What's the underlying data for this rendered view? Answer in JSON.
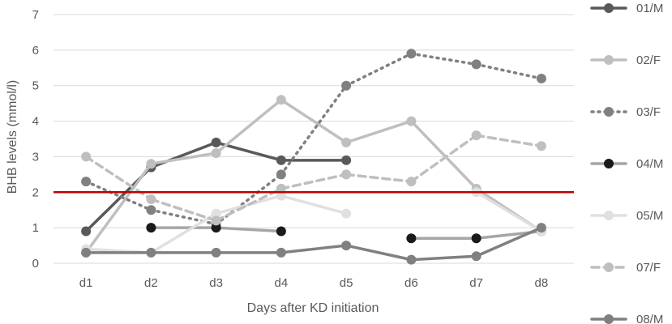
{
  "chart_data": {
    "type": "line",
    "xlabel": "Days after KD initiation",
    "ylabel": "BHB levels (mmol/l)",
    "categories": [
      "d1",
      "d2",
      "d3",
      "d4",
      "d5",
      "d6",
      "d7",
      "d8"
    ],
    "ylim": [
      0,
      7
    ],
    "yticks": [
      0,
      1,
      2,
      3,
      4,
      5,
      6,
      7
    ],
    "grid": true,
    "threshold": {
      "value": 2,
      "color": "#c00000"
    },
    "legend_position": "right",
    "series": [
      {
        "name": "01/M",
        "color": "#595959",
        "dash": "solid",
        "marker_fill": "#595959",
        "values": [
          0.9,
          2.7,
          3.4,
          2.9,
          2.9,
          null,
          null,
          null
        ]
      },
      {
        "name": "02/F",
        "color": "#bfbfbf",
        "dash": "solid",
        "marker_fill": "#bfbfbf",
        "values": [
          0.3,
          2.8,
          3.1,
          4.6,
          3.4,
          4.0,
          2.1,
          0.9
        ]
      },
      {
        "name": "03/F",
        "color": "#808080",
        "dash": "dot",
        "marker_fill": "#808080",
        "values": [
          2.3,
          1.5,
          1.1,
          2.5,
          5.0,
          5.9,
          5.6,
          5.2
        ]
      },
      {
        "name": "04/M",
        "color": "#a6a6a6",
        "dash": "solid",
        "marker_fill": "#1a1a1a",
        "values": [
          null,
          1.0,
          1.0,
          0.9,
          null,
          0.7,
          0.7,
          0.9
        ]
      },
      {
        "name": "05/M",
        "color": "#e0e0e0",
        "dash": "solid",
        "marker_fill": "#e0e0e0",
        "values": [
          0.4,
          0.3,
          1.4,
          1.9,
          1.4,
          null,
          2.0,
          0.9
        ]
      },
      {
        "name": "07/F",
        "color": "#bfbfbf",
        "dash": "dash",
        "marker_fill": "#bfbfbf",
        "values": [
          3.0,
          1.8,
          1.2,
          2.1,
          2.5,
          2.3,
          3.6,
          3.3
        ]
      },
      {
        "name": "08/M",
        "color": "#808080",
        "dash": "solid",
        "marker_fill": "#808080",
        "values": [
          0.3,
          0.3,
          0.3,
          0.3,
          0.5,
          0.1,
          0.2,
          1.0
        ]
      }
    ]
  }
}
